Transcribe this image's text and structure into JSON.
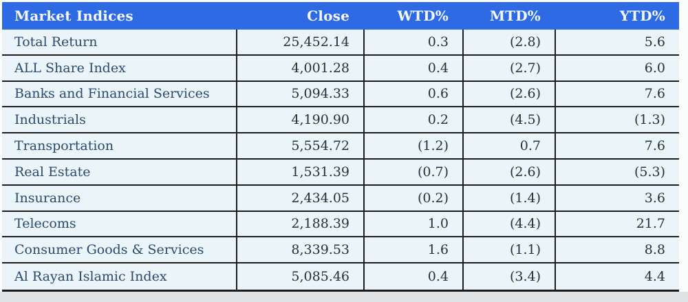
{
  "table": {
    "title": "Market Indices",
    "columns": [
      {
        "label": "Market Indices",
        "align": "left"
      },
      {
        "label": "Close",
        "align": "right"
      },
      {
        "label": "WTD%",
        "align": "right"
      },
      {
        "label": "MTD%",
        "align": "right"
      },
      {
        "label": "YTD%",
        "align": "right"
      }
    ],
    "rows": [
      {
        "cells": [
          "Total Return",
          "25,452.14",
          "0.3",
          "(2.8)",
          "5.6"
        ]
      },
      {
        "cells": [
          "ALL Share Index",
          "4,001.28",
          "0.4",
          "(2.7)",
          "6.0"
        ]
      },
      {
        "cells": [
          "Banks and Financial Services",
          "5,094.33",
          "0.6",
          "(2.6)",
          "7.6"
        ]
      },
      {
        "cells": [
          "Industrials",
          "4,190.90",
          "0.2",
          "(4.5)",
          "(1.3)"
        ]
      },
      {
        "cells": [
          "Transportation",
          "5,554.72",
          "(1.2)",
          "0.7",
          "7.6"
        ]
      },
      {
        "cells": [
          "Real Estate",
          "1,531.39",
          "(0.7)",
          "(2.6)",
          "(5.3)"
        ]
      },
      {
        "cells": [
          "Insurance",
          "2,434.05",
          "(0.2)",
          "(1.4)",
          "3.6"
        ]
      },
      {
        "cells": [
          "Telecoms",
          "2,188.39",
          "1.0",
          "(4.4)",
          "21.7"
        ]
      },
      {
        "cells": [
          "Consumer Goods & Services",
          "8,339.53",
          "1.6",
          "(1.1)",
          "8.8"
        ]
      },
      {
        "cells": [
          "Al Rayan Islamic Index",
          "5,085.46",
          "0.4",
          "(3.4)",
          "4.4"
        ]
      }
    ]
  },
  "chart_data": {
    "type": "table",
    "title": "Market Indices",
    "columns": [
      "Market Indices",
      "Close",
      "WTD%",
      "MTD%",
      "YTD%"
    ],
    "rows": [
      [
        "Total Return",
        25452.14,
        0.3,
        -2.8,
        5.6
      ],
      [
        "ALL Share Index",
        4001.28,
        0.4,
        -2.7,
        6.0
      ],
      [
        "Banks and Financial Services",
        5094.33,
        0.6,
        -2.6,
        7.6
      ],
      [
        "Industrials",
        4190.9,
        0.2,
        -4.5,
        -1.3
      ],
      [
        "Transportation",
        5554.72,
        -1.2,
        0.7,
        7.6
      ],
      [
        "Real Estate",
        1531.39,
        -0.7,
        -2.6,
        -5.3
      ],
      [
        "Insurance",
        2434.05,
        -0.2,
        -1.4,
        3.6
      ],
      [
        "Telecoms",
        2188.39,
        1.0,
        -4.4,
        21.7
      ],
      [
        "Consumer Goods & Services",
        8339.53,
        1.6,
        -1.1,
        8.8
      ],
      [
        "Al Rayan Islamic Index",
        5085.46,
        0.4,
        -3.4,
        4.4
      ]
    ],
    "note": "negative values shown in parentheses"
  },
  "colors": {
    "header_bg": "#2d6ae4",
    "header_text": "#f4f8fe",
    "row_bg": "#ebf4f8",
    "label_text": "#2a4a6d",
    "value_text": "#24303c",
    "grid_line": "#1c1c1c"
  }
}
